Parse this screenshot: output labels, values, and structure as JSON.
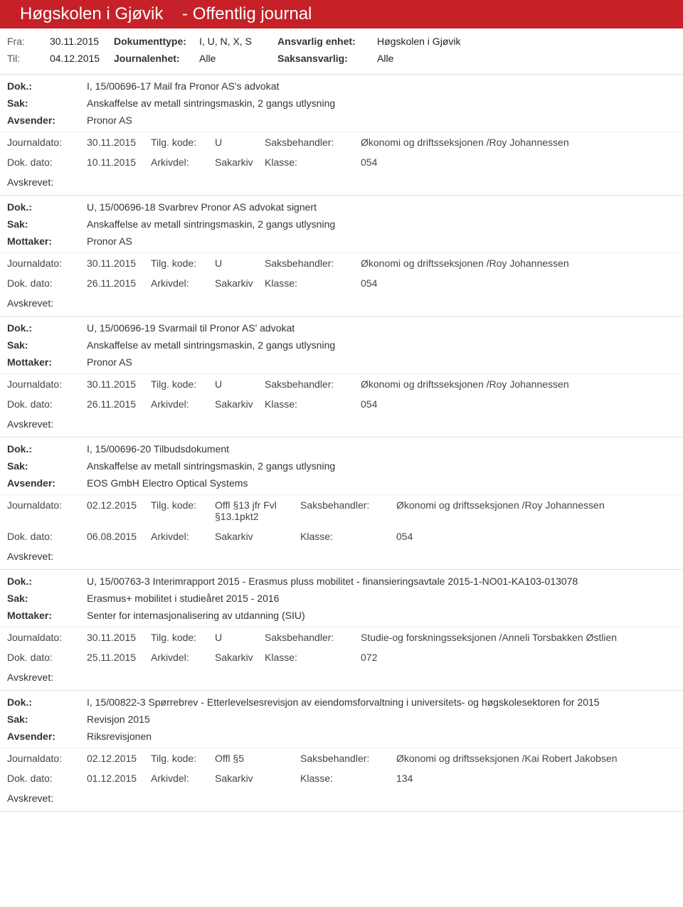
{
  "header": {
    "org": "Høgskolen i Gjøvik",
    "sep": "-",
    "title": "Offentlig journal"
  },
  "info": {
    "fra_lbl": "Fra:",
    "fra": "30.11.2015",
    "til_lbl": "Til:",
    "til": "04.12.2015",
    "dt_lbl": "Dokumenttype:",
    "dt": "I, U, N, X, S",
    "je_lbl": "Journalenhet:",
    "je": "Alle",
    "ae_lbl": "Ansvarlig enhet:",
    "ae": "Høgskolen i Gjøvik",
    "sa_lbl": "Saksansvarlig:",
    "sa": "Alle"
  },
  "labels": {
    "dok": "Dok.:",
    "sak": "Sak:",
    "avsender": "Avsender:",
    "mottaker": "Mottaker:",
    "jd": "Journaldato:",
    "tk": "Tilg. kode:",
    "sb": "Saksbehandler:",
    "dd": "Dok. dato:",
    "ad": "Arkivdel:",
    "kl": "Klasse:",
    "avskrevet": "Avskrevet:"
  },
  "entries": [
    {
      "dok": "I, 15/00696-17 Mail fra Pronor AS's advokat",
      "sak": "Anskaffelse av metall sintringsmaskin, 2 gangs utlysning",
      "party_lbl": "Avsender:",
      "party": "Pronor AS",
      "jd": "30.11.2015",
      "tk": "U",
      "sb": "Økonomi og driftsseksjonen /Roy Johannessen",
      "dd": "10.11.2015",
      "ad": "Sakarkiv",
      "kl": "054"
    },
    {
      "dok": "U, 15/00696-18 Svarbrev Pronor AS advokat signert",
      "sak": "Anskaffelse av metall sintringsmaskin, 2 gangs utlysning",
      "party_lbl": "Mottaker:",
      "party": "Pronor AS",
      "jd": "30.11.2015",
      "tk": "U",
      "sb": "Økonomi og driftsseksjonen /Roy Johannessen",
      "dd": "26.11.2015",
      "ad": "Sakarkiv",
      "kl": "054"
    },
    {
      "dok": "U, 15/00696-19 Svarmail til Pronor AS' advokat",
      "sak": "Anskaffelse av metall sintringsmaskin, 2 gangs utlysning",
      "party_lbl": "Mottaker:",
      "party": "Pronor AS",
      "jd": "30.11.2015",
      "tk": "U",
      "sb": "Økonomi og driftsseksjonen /Roy Johannessen",
      "dd": "26.11.2015",
      "ad": "Sakarkiv",
      "kl": "054"
    },
    {
      "dok": "I, 15/00696-20 Tilbudsdokument",
      "sak": "Anskaffelse av metall sintringsmaskin, 2 gangs utlysning",
      "party_lbl": "Avsender:",
      "party": "EOS GmbH Electro Optical Systems",
      "jd": "02.12.2015",
      "tk": "Offl §13 jfr Fvl §13.1pkt2",
      "sb": "Økonomi og driftsseksjonen /Roy Johannessen",
      "dd": "06.08.2015",
      "ad": "Sakarkiv",
      "kl": "054"
    },
    {
      "dok": "U, 15/00763-3 Interimrapport 2015 - Erasmus pluss mobilitet - finansieringsavtale 2015-1-NO01-KA103-013078",
      "sak": "Erasmus+ mobilitet i studieåret 2015 - 2016",
      "party_lbl": "Mottaker:",
      "party": "Senter for internasjonalisering av utdanning (SIU)",
      "jd": "30.11.2015",
      "tk": "U",
      "sb": "Studie-og forskningsseksjonen /Anneli Torsbakken Østlien",
      "dd": "25.11.2015",
      "ad": "Sakarkiv",
      "kl": "072"
    },
    {
      "dok": "I, 15/00822-3 Spørrebrev - Etterlevelsesrevisjon av eiendomsforvaltning i universitets- og høgskolesektoren for 2015",
      "sak": "Revisjon 2015",
      "party_lbl": "Avsender:",
      "party": "Riksrevisjonen",
      "jd": "02.12.2015",
      "tk": "Offl §5",
      "sb": "Økonomi og driftsseksjonen /Kai Robert Jakobsen",
      "dd": "01.12.2015",
      "ad": "Sakarkiv",
      "kl": "134"
    }
  ]
}
